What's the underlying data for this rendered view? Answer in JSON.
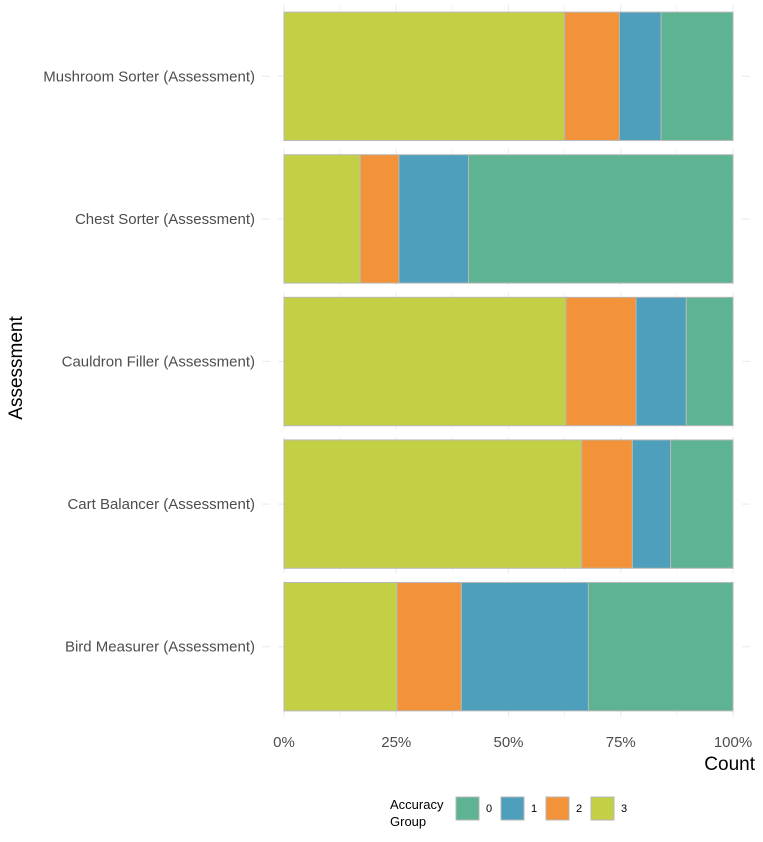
{
  "chart_data": {
    "type": "bar",
    "orientation": "horizontal",
    "stacked": true,
    "normalized": true,
    "categories": [
      "Mushroom Sorter (Assessment)",
      "Chest Sorter (Assessment)",
      "Cauldron Filler (Assessment)",
      "Cart Balancer (Assessment)",
      "Bird Measurer (Assessment)"
    ],
    "series": [
      {
        "name": "3",
        "color": "#c3cf45",
        "values": [
          0.625,
          0.17,
          0.628,
          0.663,
          0.252
        ]
      },
      {
        "name": "2",
        "color": "#f2933a",
        "values": [
          0.122,
          0.086,
          0.156,
          0.113,
          0.143
        ]
      },
      {
        "name": "1",
        "color": "#4e9fbb",
        "values": [
          0.093,
          0.155,
          0.112,
          0.085,
          0.283
        ]
      },
      {
        "name": "0",
        "color": "#5eb393",
        "values": [
          0.16,
          0.589,
          0.104,
          0.139,
          0.322
        ]
      }
    ],
    "xlabel": "Count",
    "ylabel": "Assessment",
    "xlim": [
      0,
      1
    ],
    "x_ticks": [
      "0%",
      "25%",
      "50%",
      "75%",
      "100%"
    ],
    "grid": true,
    "legend": {
      "title": "Accuracy Group",
      "position": "bottom",
      "order": [
        "0",
        "1",
        "2",
        "3"
      ]
    }
  }
}
